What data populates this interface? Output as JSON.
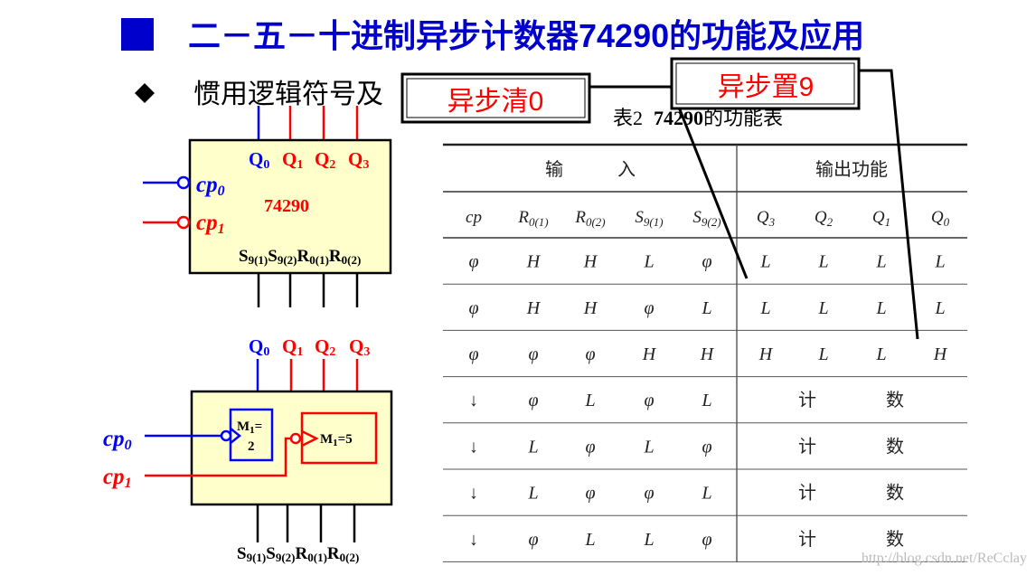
{
  "colors": {
    "title": "#0000cc",
    "bullet_square": "#0000cc",
    "red": "#ff0000",
    "blue": "#0000ff",
    "chip_fill": "#ffffcc"
  },
  "title": "二－五－十进制异步计数器74290的功能及应用",
  "subtitle": "惯用逻辑符号及",
  "callouts": {
    "clear0": "异步清0",
    "set9": "异步置9"
  },
  "symbol_top": {
    "chip_name": "74290",
    "outputs": [
      {
        "main": "Q",
        "sub": "0"
      },
      {
        "main": "Q",
        "sub": "1"
      },
      {
        "main": "Q",
        "sub": "2"
      },
      {
        "main": "Q",
        "sub": "3"
      }
    ],
    "clocks": [
      {
        "main": "cp",
        "sub": "0"
      },
      {
        "main": "cp",
        "sub": "1"
      }
    ],
    "inputs": [
      {
        "main": "S",
        "sub": "9(1)"
      },
      {
        "main": "S",
        "sub": "9(2)"
      },
      {
        "main": "R",
        "sub": "0(1)"
      },
      {
        "main": "R",
        "sub": "0(2)"
      }
    ]
  },
  "symbol_bottom": {
    "outputs": [
      {
        "main": "Q",
        "sub": "0"
      },
      {
        "main": "Q",
        "sub": "1"
      },
      {
        "main": "Q",
        "sub": "2"
      },
      {
        "main": "Q",
        "sub": "3"
      }
    ],
    "clocks": [
      {
        "main": "cp",
        "sub": "0"
      },
      {
        "main": "cp",
        "sub": "1"
      }
    ],
    "counter_mod2": {
      "main": "M",
      "sub": "1",
      "rest": "=",
      "line2": "2"
    },
    "counter_mod5": {
      "main": "M",
      "sub": "1",
      "rest": "=5"
    },
    "inputs": [
      {
        "main": "S",
        "sub": "9(1)"
      },
      {
        "main": "S",
        "sub": "9(2)"
      },
      {
        "main": "R",
        "sub": "0(1)"
      },
      {
        "main": "R",
        "sub": "0(2)"
      }
    ]
  },
  "table": {
    "caption_prefix": "表2",
    "caption_num": "74290",
    "caption_suffix": "的功能表",
    "group_input": "输　　　入",
    "group_output": "输出功能",
    "columns": [
      {
        "main": "cp",
        "sub": ""
      },
      {
        "main": "R",
        "sub": "0(1)"
      },
      {
        "main": "R",
        "sub": "0(2)"
      },
      {
        "main": "S",
        "sub": "9(1)"
      },
      {
        "main": "S",
        "sub": "9(2)"
      },
      {
        "main": "Q",
        "sub": "3"
      },
      {
        "main": "Q",
        "sub": "2"
      },
      {
        "main": "Q",
        "sub": "1"
      },
      {
        "main": "Q",
        "sub": "0"
      }
    ],
    "rows": [
      {
        "inputs": [
          "φ",
          "H",
          "H",
          "L",
          "φ"
        ],
        "outputs": [
          "L",
          "L",
          "L",
          "L"
        ]
      },
      {
        "inputs": [
          "φ",
          "H",
          "H",
          "φ",
          "L"
        ],
        "outputs": [
          "L",
          "L",
          "L",
          "L"
        ]
      },
      {
        "inputs": [
          "φ",
          "φ",
          "φ",
          "H",
          "H"
        ],
        "outputs": [
          "H",
          "L",
          "L",
          "H"
        ]
      },
      {
        "inputs": [
          "↓",
          "φ",
          "L",
          "φ",
          "L"
        ],
        "count": [
          "计",
          "数"
        ]
      },
      {
        "inputs": [
          "↓",
          "L",
          "φ",
          "L",
          "φ"
        ],
        "count": [
          "计",
          "数"
        ]
      },
      {
        "inputs": [
          "↓",
          "L",
          "φ",
          "φ",
          "L"
        ],
        "count": [
          "计",
          "数"
        ]
      },
      {
        "inputs": [
          "↓",
          "φ",
          "L",
          "L",
          "φ"
        ],
        "count": [
          "计",
          "数"
        ]
      }
    ]
  },
  "watermark": "http://blog.csdn.net/ReCclay"
}
